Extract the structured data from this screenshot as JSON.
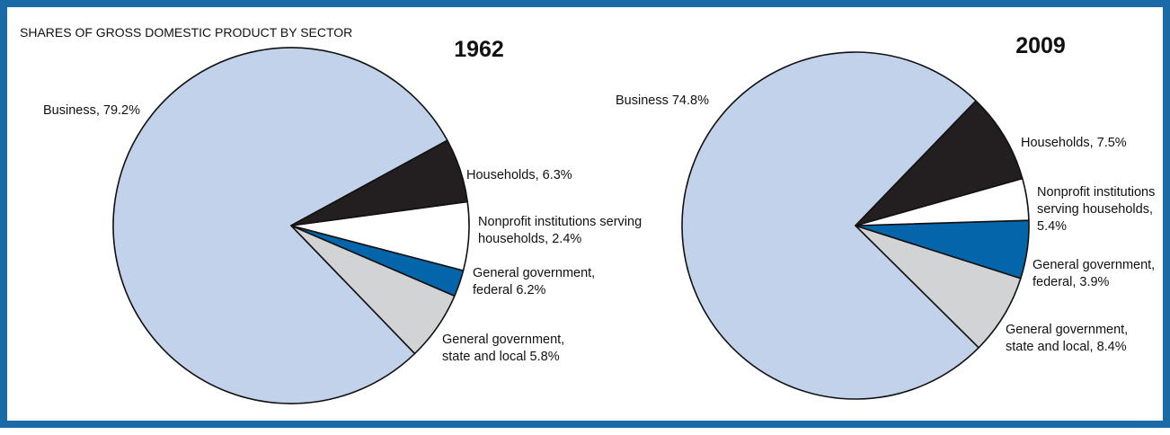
{
  "figure_title": "SHARES OF GROSS DOMESTIC PRODUCT BY SECTOR",
  "chart_data": [
    {
      "type": "pie",
      "title": "1962",
      "slices": [
        {
          "name": "Business",
          "value": 79.2,
          "color": "#c1d2ea",
          "label_lines": [
            "Business, 79.2%"
          ]
        },
        {
          "name": "Households",
          "value": 6.3,
          "color": "#d2d3d5",
          "label_lines": [
            "Households, 6.3%"
          ]
        },
        {
          "name": "Nonprofit institutions serving households",
          "value": 2.4,
          "color": "#0565aa",
          "label_lines": [
            "Nonprofit institutions serving",
            "households, 2.4%"
          ]
        },
        {
          "name": "General government, federal",
          "value": 6.2,
          "color": "#ffffff",
          "label_lines": [
            "General government,",
            "federal 6.2%"
          ]
        },
        {
          "name": "General government, state and local",
          "value": 5.8,
          "color": "#231f20",
          "label_lines": [
            "General government,",
            "state and local 5.8%"
          ]
        }
      ]
    },
    {
      "type": "pie",
      "title": "2009",
      "slices": [
        {
          "name": "Business",
          "value": 74.8,
          "color": "#c1d2ea",
          "label_lines": [
            "Business 74.8%"
          ]
        },
        {
          "name": "Households",
          "value": 7.5,
          "color": "#d2d3d5",
          "label_lines": [
            "Households, 7.5%"
          ]
        },
        {
          "name": "Nonprofit institutions serving households",
          "value": 5.4,
          "color": "#0565aa",
          "label_lines": [
            "Nonprofit institutions",
            "serving households,",
            "5.4%"
          ]
        },
        {
          "name": "General government, federal",
          "value": 3.9,
          "color": "#ffffff",
          "label_lines": [
            "General government,",
            "federal, 3.9%"
          ]
        },
        {
          "name": "General government, state and local",
          "value": 8.4,
          "color": "#231f20",
          "label_lines": [
            "General government,",
            "state and local, 8.4%"
          ]
        }
      ]
    }
  ]
}
